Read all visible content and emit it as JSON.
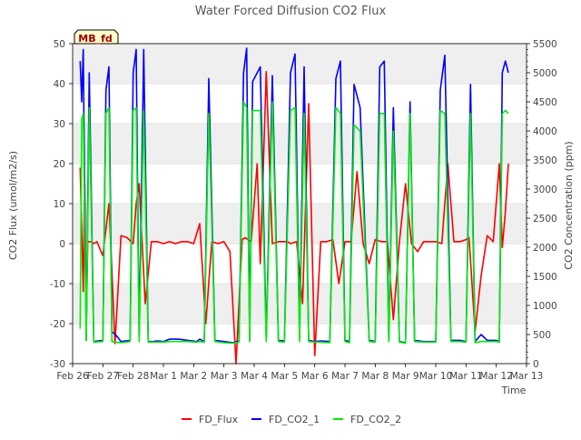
{
  "chart_data": {
    "type": "line",
    "title": "Water Forced Diffusion CO2 Flux",
    "badge": "MB_fd",
    "xlabel": "Time",
    "ylabel": "CO2 Flux (umol/m2/s)",
    "y2label": "CO2 Concentration (ppm)",
    "xlim": [
      0,
      15
    ],
    "ylim": [
      -30,
      50
    ],
    "y2lim": [
      0,
      5500
    ],
    "x_ticks": [
      {
        "v": 0,
        "label": "Feb 26"
      },
      {
        "v": 1,
        "label": "Feb 27"
      },
      {
        "v": 2,
        "label": "Feb 28"
      },
      {
        "v": 3,
        "label": "Mar 1"
      },
      {
        "v": 4,
        "label": "Mar 2"
      },
      {
        "v": 5,
        "label": "Mar 3"
      },
      {
        "v": 6,
        "label": "Mar 4"
      },
      {
        "v": 7,
        "label": "Mar 5"
      },
      {
        "v": 8,
        "label": "Mar 6"
      },
      {
        "v": 9,
        "label": "Mar 7"
      },
      {
        "v": 10,
        "label": "Mar 8"
      },
      {
        "v": 11,
        "label": "Mar 9"
      },
      {
        "v": 12,
        "label": "Mar 10"
      },
      {
        "v": 13,
        "label": "Mar 11"
      },
      {
        "v": 14,
        "label": "Mar 12"
      },
      {
        "v": 15,
        "label": "Mar 13"
      }
    ],
    "y_ticks": [
      -30,
      -20,
      -10,
      0,
      10,
      20,
      30,
      40,
      50
    ],
    "y2_ticks": [
      0,
      500,
      1000,
      1500,
      2000,
      2500,
      3000,
      3500,
      4000,
      4500,
      5000,
      5500
    ],
    "grid": true,
    "legend_position": "bottom",
    "series": [
      {
        "name": "FD_Flux",
        "color": "#ff0000",
        "axis": "left",
        "x": [
          0.25,
          0.35,
          0.4,
          0.45,
          0.5,
          0.6,
          0.7,
          0.8,
          1.0,
          1.2,
          1.4,
          1.6,
          1.8,
          2.0,
          2.1,
          2.2,
          2.4,
          2.6,
          2.8,
          3.0,
          3.2,
          3.4,
          3.6,
          3.8,
          4.0,
          4.2,
          4.4,
          4.6,
          4.8,
          5.0,
          5.2,
          5.4,
          5.6,
          5.7,
          5.8,
          5.9,
          6.1,
          6.2,
          6.4,
          6.6,
          6.8,
          7.0,
          7.1,
          7.2,
          7.4,
          7.6,
          7.8,
          8.0,
          8.2,
          8.4,
          8.6,
          8.8,
          9.0,
          9.2,
          9.4,
          9.6,
          9.8,
          10.0,
          10.2,
          10.4,
          10.6,
          10.8,
          11.0,
          11.2,
          11.4,
          11.6,
          11.8,
          12.0,
          12.2,
          12.4,
          12.6,
          12.8,
          13.0,
          13.1,
          13.3,
          13.5,
          13.7,
          13.9,
          14.1,
          14.2,
          14.3,
          14.4
        ],
        "y": [
          19,
          -12,
          15,
          -20,
          0.5,
          0.5,
          0,
          0.5,
          -3,
          10,
          -25,
          2,
          1.5,
          0,
          10,
          15,
          -15,
          0.5,
          0.5,
          0,
          0.5,
          0,
          0.5,
          0.5,
          0,
          5,
          -20,
          0.5,
          0,
          0.5,
          -2,
          -30,
          1,
          1.5,
          1,
          0.5,
          20,
          -5,
          43,
          0,
          0.5,
          0.5,
          0.5,
          0,
          0.5,
          -15,
          35,
          -28,
          0.5,
          0.5,
          1,
          -10,
          0.5,
          0.5,
          18,
          0,
          -5,
          1,
          0.5,
          0.5,
          -19,
          0.5,
          15,
          0,
          -2,
          0.5,
          0.5,
          0.5,
          0,
          20,
          0.5,
          0.5,
          1,
          1.5,
          -22,
          -8,
          2,
          0.5,
          20,
          -1,
          8,
          20
        ]
      },
      {
        "name": "FD_CO2_1",
        "color": "#0000ff",
        "axis": "right",
        "x": [
          0.25,
          0.3,
          0.35,
          0.45,
          0.55,
          0.7,
          1.0,
          1.1,
          1.2,
          1.3,
          1.45,
          1.6,
          1.9,
          2.0,
          2.1,
          2.2,
          2.35,
          2.5,
          2.65,
          2.8,
          3.0,
          3.2,
          3.5,
          3.8,
          4.1,
          4.2,
          4.35,
          4.5,
          4.7,
          5.0,
          5.3,
          5.5,
          5.65,
          5.75,
          5.85,
          5.95,
          6.2,
          6.4,
          6.6,
          6.8,
          7.0,
          7.2,
          7.35,
          7.5,
          7.65,
          7.8,
          8.0,
          8.2,
          8.5,
          8.7,
          8.85,
          9.0,
          9.15,
          9.3,
          9.5,
          9.8,
          10.0,
          10.15,
          10.3,
          10.45,
          10.6,
          10.8,
          11.0,
          11.15,
          11.3,
          11.6,
          11.8,
          12.0,
          12.15,
          12.3,
          12.5,
          12.8,
          13.0,
          13.15,
          13.3,
          13.5,
          13.7,
          14.0,
          14.1,
          14.2,
          14.3,
          14.4
        ],
        "y": [
          5200,
          4500,
          5400,
          400,
          5000,
          380,
          400,
          4700,
          5100,
          550,
          480,
          380,
          400,
          5000,
          5400,
          420,
          5400,
          380,
          380,
          390,
          380,
          420,
          420,
          400,
          380,
          420,
          380,
          4900,
          400,
          380,
          360,
          390,
          5000,
          5420,
          400,
          4850,
          5100,
          420,
          4950,
          400,
          390,
          5000,
          5320,
          440,
          5100,
          400,
          380,
          390,
          380,
          4900,
          5200,
          400,
          380,
          4800,
          4400,
          400,
          380,
          5100,
          5200,
          400,
          4400,
          380,
          360,
          4500,
          400,
          380,
          380,
          380,
          4700,
          5300,
          400,
          400,
          380,
          4800,
          380,
          500,
          400,
          400,
          380,
          5000,
          5200,
          5000
        ]
      },
      {
        "name": "FD_CO2_2",
        "color": "#00ee00",
        "axis": "right",
        "x": [
          0.25,
          0.3,
          0.35,
          0.45,
          0.55,
          0.7,
          1.0,
          1.1,
          1.2,
          1.3,
          1.45,
          1.6,
          1.9,
          2.0,
          2.1,
          2.2,
          2.35,
          2.5,
          2.65,
          2.8,
          3.0,
          3.2,
          3.5,
          3.8,
          4.1,
          4.2,
          4.35,
          4.5,
          4.7,
          5.0,
          5.3,
          5.5,
          5.65,
          5.75,
          5.85,
          5.95,
          6.2,
          6.4,
          6.6,
          6.8,
          7.0,
          7.2,
          7.35,
          7.5,
          7.65,
          7.8,
          8.0,
          8.2,
          8.5,
          8.7,
          8.85,
          9.0,
          9.15,
          9.3,
          9.5,
          9.8,
          10.0,
          10.15,
          10.3,
          10.45,
          10.6,
          10.8,
          11.0,
          11.15,
          11.3,
          11.6,
          11.8,
          12.0,
          12.15,
          12.3,
          12.5,
          12.8,
          13.0,
          13.15,
          13.3,
          13.5,
          13.7,
          14.0,
          14.1,
          14.2,
          14.3,
          14.4
        ],
        "y": [
          600,
          4200,
          4300,
          400,
          4400,
          370,
          380,
          4300,
          4400,
          380,
          370,
          360,
          380,
          4350,
          4400,
          380,
          4350,
          370,
          370,
          370,
          370,
          380,
          380,
          380,
          370,
          380,
          370,
          4300,
          380,
          360,
          350,
          370,
          4500,
          4400,
          380,
          4350,
          4350,
          380,
          4500,
          380,
          370,
          4350,
          4400,
          380,
          4300,
          380,
          370,
          370,
          360,
          4400,
          4300,
          380,
          360,
          4100,
          4000,
          380,
          370,
          4300,
          4300,
          380,
          4000,
          370,
          350,
          4300,
          380,
          370,
          370,
          370,
          4350,
          4300,
          380,
          380,
          370,
          4300,
          360,
          380,
          380,
          380,
          370,
          4300,
          4350,
          4300
        ]
      }
    ]
  }
}
